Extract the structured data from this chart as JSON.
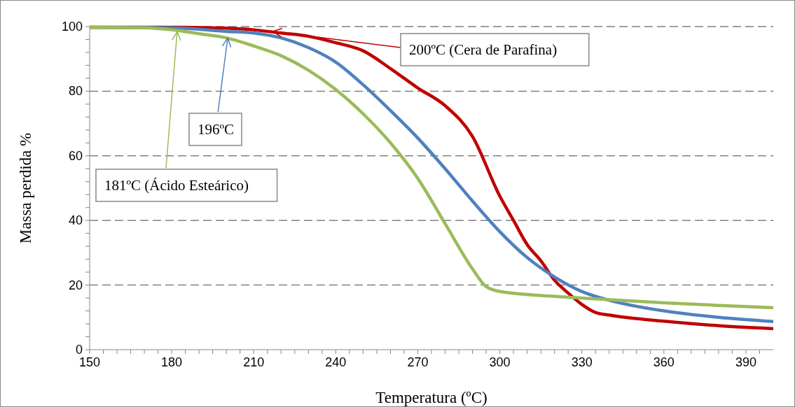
{
  "chart_data": {
    "type": "line",
    "xlabel": "Temperatura (ºC)",
    "ylabel": "Massa perdida %",
    "xlim": [
      150,
      400
    ],
    "ylim": [
      0,
      100
    ],
    "xticks": [
      150,
      {
        "value": 155,
        "label": null
      },
      {
        "value": 160,
        "label": null
      },
      {
        "value": 165,
        "label": null
      },
      {
        "value": 170,
        "label": null
      },
      {
        "value": 175,
        "label": null
      },
      180,
      {
        "value": 185,
        "label": null
      },
      {
        "value": 190,
        "label": null
      },
      {
        "value": 195,
        "label": null
      },
      {
        "value": 200,
        "label": null
      },
      {
        "value": 205,
        "label": null
      },
      210,
      {
        "value": 215,
        "label": null
      },
      {
        "value": 220,
        "label": null
      },
      {
        "value": 225,
        "label": null
      },
      {
        "value": 230,
        "label": null
      },
      {
        "value": 235,
        "label": null
      },
      240,
      {
        "value": 245,
        "label": null
      },
      {
        "value": 250,
        "label": null
      },
      {
        "value": 255,
        "label": null
      },
      {
        "value": 260,
        "label": null
      },
      {
        "value": 265,
        "label": null
      },
      270,
      {
        "value": 275,
        "label": null
      },
      {
        "value": 280,
        "label": null
      },
      {
        "value": 285,
        "label": null
      },
      {
        "value": 290,
        "label": null
      },
      {
        "value": 295,
        "label": null
      },
      300,
      {
        "value": 305,
        "label": null
      },
      {
        "value": 310,
        "label": null
      },
      {
        "value": 315,
        "label": null
      },
      {
        "value": 320,
        "label": null
      },
      {
        "value": 325,
        "label": null
      },
      330,
      {
        "value": 335,
        "label": null
      },
      {
        "value": 340,
        "label": null
      },
      {
        "value": 345,
        "label": null
      },
      {
        "value": 350,
        "label": null
      },
      {
        "value": 355,
        "label": null
      },
      360,
      {
        "value": 365,
        "label": null
      },
      {
        "value": 370,
        "label": null
      },
      {
        "value": 375,
        "label": null
      },
      {
        "value": 380,
        "label": null
      },
      {
        "value": 385,
        "label": null
      },
      390,
      {
        "value": 395,
        "label": null
      }
    ],
    "yticks": [
      0,
      {
        "value": 4,
        "label": null
      },
      {
        "value": 8,
        "label": null
      },
      {
        "value": 12,
        "label": null
      },
      {
        "value": 16,
        "label": null
      },
      20,
      {
        "value": 24,
        "label": null
      },
      {
        "value": 28,
        "label": null
      },
      {
        "value": 32,
        "label": null
      },
      {
        "value": 36,
        "label": null
      },
      40,
      {
        "value": 44,
        "label": null
      },
      {
        "value": 48,
        "label": null
      },
      {
        "value": 52,
        "label": null
      },
      {
        "value": 56,
        "label": null
      },
      60,
      {
        "value": 64,
        "label": null
      },
      {
        "value": 68,
        "label": null
      },
      {
        "value": 72,
        "label": null
      },
      {
        "value": 76,
        "label": null
      },
      80,
      {
        "value": 84,
        "label": null
      },
      {
        "value": 88,
        "label": null
      },
      {
        "value": 92,
        "label": null
      },
      {
        "value": 96,
        "label": null
      },
      100
    ],
    "grid": "y",
    "marker": "none",
    "line_style": "solid",
    "series": [
      {
        "color": "#c00000",
        "x": [
          150,
          180,
          200,
          210,
          220,
          230,
          240,
          250,
          260,
          270,
          280,
          290,
          300,
          305,
          310,
          315,
          320,
          325,
          330,
          335,
          340,
          360,
          380,
          400
        ],
        "values": [
          99.8,
          99.8,
          99.5,
          99,
          98,
          97,
          95,
          92.5,
          87,
          81,
          75.5,
          66,
          47.5,
          40,
          32.5,
          27.5,
          21.5,
          17.5,
          14,
          11.5,
          10.7,
          8.8,
          7.4,
          6.5
        ]
      },
      {
        "color": "#4f81bd",
        "x": [
          150,
          180,
          200,
          210,
          220,
          230,
          240,
          250,
          260,
          270,
          280,
          290,
          300,
          310,
          320,
          330,
          340,
          360,
          380,
          400
        ],
        "values": [
          99.8,
          99.6,
          98.5,
          98,
          96.5,
          93.5,
          89,
          82,
          74,
          65.5,
          56,
          46,
          36.5,
          28.5,
          22.5,
          18,
          15.3,
          12,
          10,
          8.7
        ]
      },
      {
        "color": "#9bbb59",
        "x": [
          150,
          170,
          180,
          190,
          200,
          210,
          220,
          230,
          240,
          250,
          260,
          270,
          280,
          290,
          295,
          300,
          320,
          340,
          360,
          380,
          400
        ],
        "values": [
          99.8,
          99.6,
          99,
          97.8,
          96.5,
          94,
          91,
          86.5,
          80.5,
          73,
          64,
          53,
          39,
          25,
          19.5,
          18,
          16.5,
          15.5,
          14.5,
          13.7,
          13
        ]
      }
    ],
    "annotations": [
      {
        "text": "200ºC (Cera de Parafina)",
        "x": 217,
        "y": 98.5
      },
      {
        "text": "196ºC",
        "x": 200.5,
        "y": 96.5
      },
      {
        "text": "181ºC (Ácido Esteárico)",
        "x": 182,
        "y": 98.5
      }
    ]
  }
}
